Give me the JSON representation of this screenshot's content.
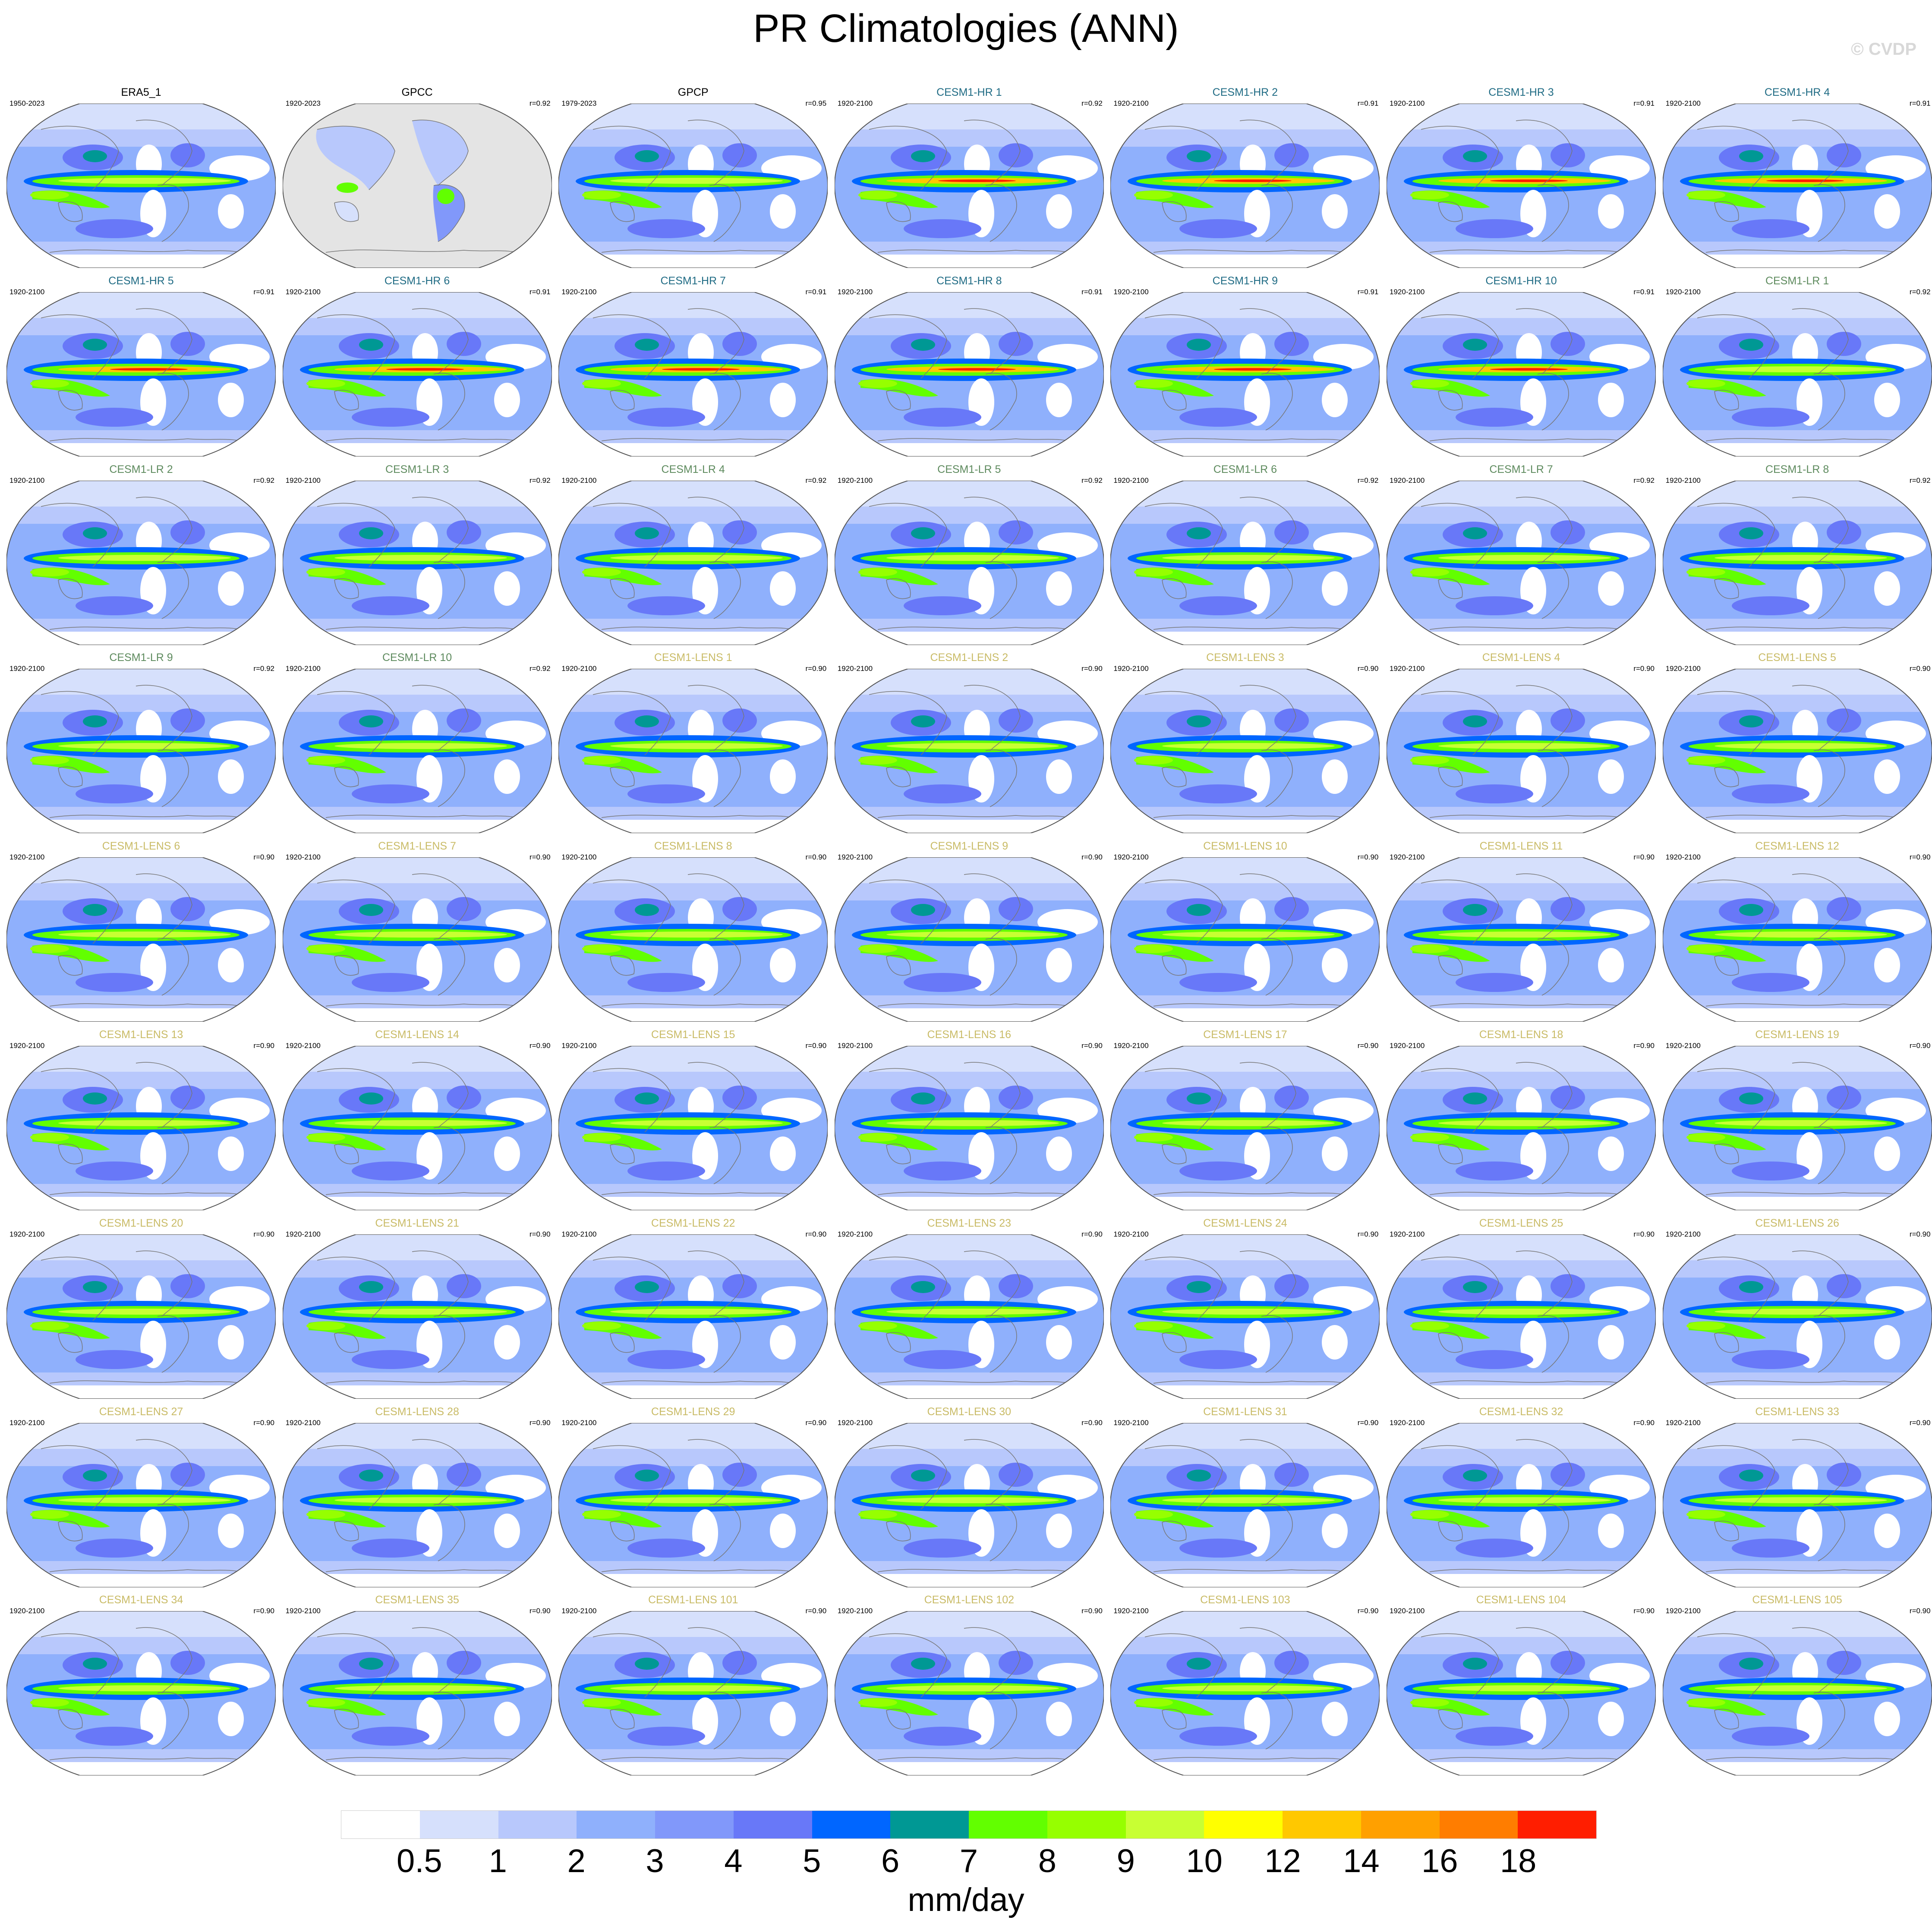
{
  "title": "PR Climatologies (ANN)",
  "copyright": "© CVDP",
  "group_colors": {
    "obs": "#000000",
    "gpcc": "#000000",
    "hr": "#1f6b84",
    "lr": "#5d8a5d",
    "lens": "#c9bb66"
  },
  "chart_data": {
    "type": "heatmap",
    "title": "PR Climatologies (ANN)",
    "colorbar": {
      "levels": [
        "0.5",
        "1",
        "2",
        "3",
        "4",
        "5",
        "6",
        "7",
        "8",
        "9",
        "10",
        "12",
        "14",
        "16",
        "18"
      ],
      "colors": [
        "#ffffff",
        "#d6e0fc",
        "#b8c8fc",
        "#8fb0fc",
        "#8198fa",
        "#6878f8",
        "#0066ff",
        "#009894",
        "#62ff00",
        "#96ff00",
        "#c8ff33",
        "#ffff00",
        "#ffc800",
        "#ffa000",
        "#ff7d00",
        "#ff1e00"
      ],
      "units": "mm/day"
    },
    "panels": [
      {
        "name": "ERA5_1",
        "years": "1950-2023",
        "r": "",
        "group": "obs"
      },
      {
        "name": "GPCC",
        "years": "1920-2023",
        "r": "r=0.92",
        "group": "gpcc"
      },
      {
        "name": "GPCP",
        "years": "1979-2023",
        "r": "r=0.95",
        "group": "obs"
      },
      {
        "name": "CESM1-HR 1",
        "years": "1920-2100",
        "r": "r=0.92",
        "group": "hr"
      },
      {
        "name": "CESM1-HR 2",
        "years": "1920-2100",
        "r": "r=0.91",
        "group": "hr"
      },
      {
        "name": "CESM1-HR 3",
        "years": "1920-2100",
        "r": "r=0.91",
        "group": "hr"
      },
      {
        "name": "CESM1-HR 4",
        "years": "1920-2100",
        "r": "r=0.91",
        "group": "hr"
      },
      {
        "name": "CESM1-HR 5",
        "years": "1920-2100",
        "r": "r=0.91",
        "group": "hr"
      },
      {
        "name": "CESM1-HR 6",
        "years": "1920-2100",
        "r": "r=0.91",
        "group": "hr"
      },
      {
        "name": "CESM1-HR 7",
        "years": "1920-2100",
        "r": "r=0.91",
        "group": "hr"
      },
      {
        "name": "CESM1-HR 8",
        "years": "1920-2100",
        "r": "r=0.91",
        "group": "hr"
      },
      {
        "name": "CESM1-HR 9",
        "years": "1920-2100",
        "r": "r=0.91",
        "group": "hr"
      },
      {
        "name": "CESM1-HR 10",
        "years": "1920-2100",
        "r": "r=0.91",
        "group": "hr"
      },
      {
        "name": "CESM1-LR 1",
        "years": "1920-2100",
        "r": "r=0.92",
        "group": "lr"
      },
      {
        "name": "CESM1-LR 2",
        "years": "1920-2100",
        "r": "r=0.92",
        "group": "lr"
      },
      {
        "name": "CESM1-LR 3",
        "years": "1920-2100",
        "r": "r=0.92",
        "group": "lr"
      },
      {
        "name": "CESM1-LR 4",
        "years": "1920-2100",
        "r": "r=0.92",
        "group": "lr"
      },
      {
        "name": "CESM1-LR 5",
        "years": "1920-2100",
        "r": "r=0.92",
        "group": "lr"
      },
      {
        "name": "CESM1-LR 6",
        "years": "1920-2100",
        "r": "r=0.92",
        "group": "lr"
      },
      {
        "name": "CESM1-LR 7",
        "years": "1920-2100",
        "r": "r=0.92",
        "group": "lr"
      },
      {
        "name": "CESM1-LR 8",
        "years": "1920-2100",
        "r": "r=0.92",
        "group": "lr"
      },
      {
        "name": "CESM1-LR 9",
        "years": "1920-2100",
        "r": "r=0.92",
        "group": "lr"
      },
      {
        "name": "CESM1-LR 10",
        "years": "1920-2100",
        "r": "r=0.92",
        "group": "lr"
      },
      {
        "name": "CESM1-LENS 1",
        "years": "1920-2100",
        "r": "r=0.90",
        "group": "lens"
      },
      {
        "name": "CESM1-LENS 2",
        "years": "1920-2100",
        "r": "r=0.90",
        "group": "lens"
      },
      {
        "name": "CESM1-LENS 3",
        "years": "1920-2100",
        "r": "r=0.90",
        "group": "lens"
      },
      {
        "name": "CESM1-LENS 4",
        "years": "1920-2100",
        "r": "r=0.90",
        "group": "lens"
      },
      {
        "name": "CESM1-LENS 5",
        "years": "1920-2100",
        "r": "r=0.90",
        "group": "lens"
      },
      {
        "name": "CESM1-LENS 6",
        "years": "1920-2100",
        "r": "r=0.90",
        "group": "lens"
      },
      {
        "name": "CESM1-LENS 7",
        "years": "1920-2100",
        "r": "r=0.90",
        "group": "lens"
      },
      {
        "name": "CESM1-LENS 8",
        "years": "1920-2100",
        "r": "r=0.90",
        "group": "lens"
      },
      {
        "name": "CESM1-LENS 9",
        "years": "1920-2100",
        "r": "r=0.90",
        "group": "lens"
      },
      {
        "name": "CESM1-LENS 10",
        "years": "1920-2100",
        "r": "r=0.90",
        "group": "lens"
      },
      {
        "name": "CESM1-LENS 11",
        "years": "1920-2100",
        "r": "r=0.90",
        "group": "lens"
      },
      {
        "name": "CESM1-LENS 12",
        "years": "1920-2100",
        "r": "r=0.90",
        "group": "lens"
      },
      {
        "name": "CESM1-LENS 13",
        "years": "1920-2100",
        "r": "r=0.90",
        "group": "lens"
      },
      {
        "name": "CESM1-LENS 14",
        "years": "1920-2100",
        "r": "r=0.90",
        "group": "lens"
      },
      {
        "name": "CESM1-LENS 15",
        "years": "1920-2100",
        "r": "r=0.90",
        "group": "lens"
      },
      {
        "name": "CESM1-LENS 16",
        "years": "1920-2100",
        "r": "r=0.90",
        "group": "lens"
      },
      {
        "name": "CESM1-LENS 17",
        "years": "1920-2100",
        "r": "r=0.90",
        "group": "lens"
      },
      {
        "name": "CESM1-LENS 18",
        "years": "1920-2100",
        "r": "r=0.90",
        "group": "lens"
      },
      {
        "name": "CESM1-LENS 19",
        "years": "1920-2100",
        "r": "r=0.90",
        "group": "lens"
      },
      {
        "name": "CESM1-LENS 20",
        "years": "1920-2100",
        "r": "r=0.90",
        "group": "lens"
      },
      {
        "name": "CESM1-LENS 21",
        "years": "1920-2100",
        "r": "r=0.90",
        "group": "lens"
      },
      {
        "name": "CESM1-LENS 22",
        "years": "1920-2100",
        "r": "r=0.90",
        "group": "lens"
      },
      {
        "name": "CESM1-LENS 23",
        "years": "1920-2100",
        "r": "r=0.90",
        "group": "lens"
      },
      {
        "name": "CESM1-LENS 24",
        "years": "1920-2100",
        "r": "r=0.90",
        "group": "lens"
      },
      {
        "name": "CESM1-LENS 25",
        "years": "1920-2100",
        "r": "r=0.90",
        "group": "lens"
      },
      {
        "name": "CESM1-LENS 26",
        "years": "1920-2100",
        "r": "r=0.90",
        "group": "lens"
      },
      {
        "name": "CESM1-LENS 27",
        "years": "1920-2100",
        "r": "r=0.90",
        "group": "lens"
      },
      {
        "name": "CESM1-LENS 28",
        "years": "1920-2100",
        "r": "r=0.90",
        "group": "lens"
      },
      {
        "name": "CESM1-LENS 29",
        "years": "1920-2100",
        "r": "r=0.90",
        "group": "lens"
      },
      {
        "name": "CESM1-LENS 30",
        "years": "1920-2100",
        "r": "r=0.90",
        "group": "lens"
      },
      {
        "name": "CESM1-LENS 31",
        "years": "1920-2100",
        "r": "r=0.90",
        "group": "lens"
      },
      {
        "name": "CESM1-LENS 32",
        "years": "1920-2100",
        "r": "r=0.90",
        "group": "lens"
      },
      {
        "name": "CESM1-LENS 33",
        "years": "1920-2100",
        "r": "r=0.90",
        "group": "lens"
      },
      {
        "name": "CESM1-LENS 34",
        "years": "1920-2100",
        "r": "r=0.90",
        "group": "lens"
      },
      {
        "name": "CESM1-LENS 35",
        "years": "1920-2100",
        "r": "r=0.90",
        "group": "lens"
      },
      {
        "name": "CESM1-LENS 101",
        "years": "1920-2100",
        "r": "r=0.90",
        "group": "lens"
      },
      {
        "name": "CESM1-LENS 102",
        "years": "1920-2100",
        "r": "r=0.90",
        "group": "lens"
      },
      {
        "name": "CESM1-LENS 103",
        "years": "1920-2100",
        "r": "r=0.90",
        "group": "lens"
      },
      {
        "name": "CESM1-LENS 104",
        "years": "1920-2100",
        "r": "r=0.90",
        "group": "lens"
      },
      {
        "name": "CESM1-LENS 105",
        "years": "1920-2100",
        "r": "r=0.90",
        "group": "lens"
      }
    ]
  }
}
